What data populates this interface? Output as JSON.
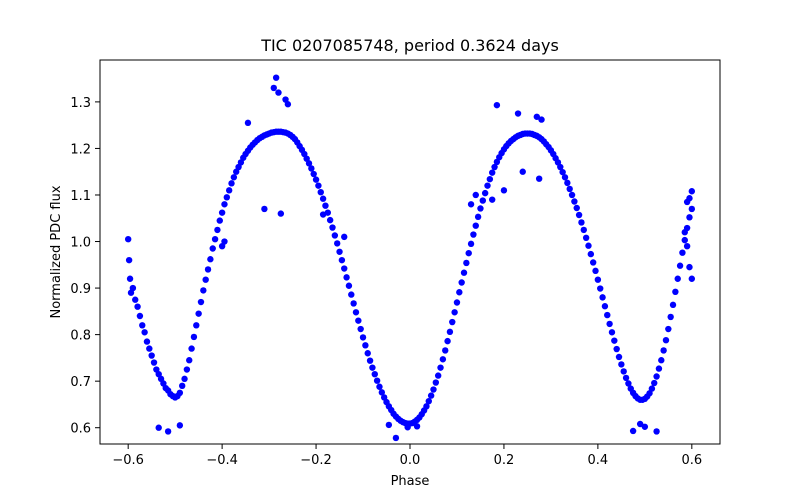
{
  "chart_data": {
    "type": "scatter",
    "title": "TIC 0207085748, period 0.3624 days",
    "xlabel": "Phase",
    "ylabel": "Normalized PDC flux",
    "xlim": [
      -0.66,
      0.66
    ],
    "ylim": [
      0.565,
      1.39
    ],
    "xticks": [
      -0.6,
      -0.4,
      -0.2,
      0.0,
      0.2,
      0.4,
      0.6
    ],
    "xtick_labels": [
      "−0.6",
      "−0.4",
      "−0.2",
      "0.0",
      "0.2",
      "0.4",
      "0.6"
    ],
    "yticks": [
      0.6,
      0.7,
      0.8,
      0.9,
      1.0,
      1.1,
      1.2,
      1.3
    ],
    "ytick_labels": [
      "0.6",
      "0.7",
      "0.8",
      "0.9",
      "1.0",
      "1.1",
      "1.2",
      "1.3"
    ],
    "grid": false,
    "legend": "none",
    "series": [
      {
        "color": "#0000ff",
        "marker": "circle",
        "points": [
          [
            -0.6,
            1.005
          ],
          [
            -0.598,
            0.96
          ],
          [
            -0.596,
            0.92
          ],
          [
            -0.594,
            0.89
          ],
          [
            -0.59,
            0.9
          ],
          [
            -0.585,
            0.875
          ],
          [
            -0.58,
            0.86
          ],
          [
            -0.575,
            0.84
          ],
          [
            -0.57,
            0.82
          ],
          [
            -0.565,
            0.805
          ],
          [
            -0.56,
            0.785
          ],
          [
            -0.555,
            0.77
          ],
          [
            -0.55,
            0.755
          ],
          [
            -0.545,
            0.74
          ],
          [
            -0.54,
            0.725
          ],
          [
            -0.535,
            0.715
          ],
          [
            -0.53,
            0.705
          ],
          [
            -0.525,
            0.695
          ],
          [
            -0.52,
            0.685
          ],
          [
            -0.515,
            0.68
          ],
          [
            -0.51,
            0.672
          ],
          [
            -0.505,
            0.668
          ],
          [
            -0.5,
            0.665
          ],
          [
            -0.495,
            0.668
          ],
          [
            -0.49,
            0.675
          ],
          [
            -0.485,
            0.69
          ],
          [
            -0.48,
            0.705
          ],
          [
            -0.475,
            0.725
          ],
          [
            -0.47,
            0.745
          ],
          [
            -0.465,
            0.77
          ],
          [
            -0.46,
            0.795
          ],
          [
            -0.455,
            0.82
          ],
          [
            -0.45,
            0.845
          ],
          [
            -0.445,
            0.87
          ],
          [
            -0.44,
            0.895
          ],
          [
            -0.435,
            0.918
          ],
          [
            -0.43,
            0.94
          ],
          [
            -0.425,
            0.962
          ],
          [
            -0.42,
            0.985
          ],
          [
            -0.415,
            1.005
          ],
          [
            -0.41,
            1.025
          ],
          [
            -0.405,
            1.045
          ],
          [
            -0.4,
            1.062
          ],
          [
            -0.395,
            1.08
          ],
          [
            -0.39,
            1.095
          ],
          [
            -0.385,
            1.11
          ],
          [
            -0.38,
            1.125
          ],
          [
            -0.375,
            1.138
          ],
          [
            -0.37,
            1.15
          ],
          [
            -0.365,
            1.16
          ],
          [
            -0.36,
            1.17
          ],
          [
            -0.355,
            1.18
          ],
          [
            -0.35,
            1.188
          ],
          [
            -0.345,
            1.195
          ],
          [
            -0.34,
            1.202
          ],
          [
            -0.335,
            1.208
          ],
          [
            -0.33,
            1.213
          ],
          [
            -0.325,
            1.218
          ],
          [
            -0.32,
            1.222
          ],
          [
            -0.315,
            1.225
          ],
          [
            -0.31,
            1.228
          ],
          [
            -0.305,
            1.23
          ],
          [
            -0.3,
            1.232
          ],
          [
            -0.295,
            1.234
          ],
          [
            -0.29,
            1.235
          ],
          [
            -0.285,
            1.236
          ],
          [
            -0.28,
            1.236
          ],
          [
            -0.275,
            1.236
          ],
          [
            -0.27,
            1.235
          ],
          [
            -0.265,
            1.234
          ],
          [
            -0.26,
            1.232
          ],
          [
            -0.255,
            1.229
          ],
          [
            -0.25,
            1.225
          ],
          [
            -0.245,
            1.22
          ],
          [
            -0.24,
            1.213
          ],
          [
            -0.235,
            1.205
          ],
          [
            -0.23,
            1.197
          ],
          [
            -0.225,
            1.188
          ],
          [
            -0.22,
            1.178
          ],
          [
            -0.215,
            1.168
          ],
          [
            -0.21,
            1.157
          ],
          [
            -0.205,
            1.145
          ],
          [
            -0.2,
            1.133
          ],
          [
            -0.195,
            1.12
          ],
          [
            -0.19,
            1.106
          ],
          [
            -0.185,
            1.092
          ],
          [
            -0.18,
            1.077
          ],
          [
            -0.175,
            1.062
          ],
          [
            -0.17,
            1.046
          ],
          [
            -0.165,
            1.03
          ],
          [
            -0.16,
            1.013
          ],
          [
            -0.155,
            0.996
          ],
          [
            -0.15,
            0.978
          ],
          [
            -0.145,
            0.96
          ],
          [
            -0.14,
            0.942
          ],
          [
            -0.135,
            0.923
          ],
          [
            -0.13,
            0.905
          ],
          [
            -0.125,
            0.886
          ],
          [
            -0.12,
            0.867
          ],
          [
            -0.115,
            0.848
          ],
          [
            -0.11,
            0.83
          ],
          [
            -0.105,
            0.812
          ],
          [
            -0.1,
            0.794
          ],
          [
            -0.095,
            0.777
          ],
          [
            -0.09,
            0.76
          ],
          [
            -0.085,
            0.744
          ],
          [
            -0.08,
            0.729
          ],
          [
            -0.075,
            0.715
          ],
          [
            -0.07,
            0.701
          ],
          [
            -0.065,
            0.688
          ],
          [
            -0.06,
            0.676
          ],
          [
            -0.055,
            0.665
          ],
          [
            -0.05,
            0.655
          ],
          [
            -0.045,
            0.646
          ],
          [
            -0.04,
            0.638
          ],
          [
            -0.035,
            0.63
          ],
          [
            -0.03,
            0.624
          ],
          [
            -0.025,
            0.619
          ],
          [
            -0.02,
            0.615
          ],
          [
            -0.015,
            0.612
          ],
          [
            -0.01,
            0.61
          ],
          [
            -0.005,
            0.609
          ],
          [
            0.0,
            0.609
          ],
          [
            0.005,
            0.61
          ],
          [
            0.01,
            0.613
          ],
          [
            0.015,
            0.617
          ],
          [
            0.02,
            0.622
          ],
          [
            0.025,
            0.629
          ],
          [
            0.03,
            0.637
          ],
          [
            0.035,
            0.646
          ],
          [
            0.04,
            0.657
          ],
          [
            0.045,
            0.669
          ],
          [
            0.05,
            0.682
          ],
          [
            0.055,
            0.697
          ],
          [
            0.06,
            0.712
          ],
          [
            0.065,
            0.729
          ],
          [
            0.07,
            0.747
          ],
          [
            0.075,
            0.766
          ],
          [
            0.08,
            0.786
          ],
          [
            0.085,
            0.806
          ],
          [
            0.09,
            0.827
          ],
          [
            0.095,
            0.848
          ],
          [
            0.1,
            0.869
          ],
          [
            0.105,
            0.891
          ],
          [
            0.11,
            0.912
          ],
          [
            0.115,
            0.933
          ],
          [
            0.12,
            0.954
          ],
          [
            0.125,
            0.975
          ],
          [
            0.13,
            0.995
          ],
          [
            0.135,
            1.015
          ],
          [
            0.14,
            1.034
          ],
          [
            0.145,
            1.053
          ],
          [
            0.15,
            1.071
          ],
          [
            0.155,
            1.088
          ],
          [
            0.16,
            1.104
          ],
          [
            0.165,
            1.12
          ],
          [
            0.17,
            1.134
          ],
          [
            0.175,
            1.148
          ],
          [
            0.18,
            1.16
          ],
          [
            0.185,
            1.171
          ],
          [
            0.19,
            1.181
          ],
          [
            0.195,
            1.19
          ],
          [
            0.2,
            1.198
          ],
          [
            0.205,
            1.205
          ],
          [
            0.21,
            1.211
          ],
          [
            0.215,
            1.216
          ],
          [
            0.22,
            1.22
          ],
          [
            0.225,
            1.224
          ],
          [
            0.23,
            1.227
          ],
          [
            0.235,
            1.229
          ],
          [
            0.24,
            1.231
          ],
          [
            0.245,
            1.232
          ],
          [
            0.25,
            1.232
          ],
          [
            0.255,
            1.232
          ],
          [
            0.26,
            1.231
          ],
          [
            0.265,
            1.229
          ],
          [
            0.27,
            1.227
          ],
          [
            0.275,
            1.224
          ],
          [
            0.28,
            1.22
          ],
          [
            0.285,
            1.215
          ],
          [
            0.29,
            1.209
          ],
          [
            0.295,
            1.203
          ],
          [
            0.3,
            1.196
          ],
          [
            0.305,
            1.188
          ],
          [
            0.31,
            1.179
          ],
          [
            0.315,
            1.17
          ],
          [
            0.32,
            1.16
          ],
          [
            0.325,
            1.149
          ],
          [
            0.33,
            1.138
          ],
          [
            0.335,
            1.126
          ],
          [
            0.34,
            1.113
          ],
          [
            0.345,
            1.1
          ],
          [
            0.35,
            1.086
          ],
          [
            0.355,
            1.072
          ],
          [
            0.36,
            1.057
          ],
          [
            0.365,
            1.041
          ],
          [
            0.37,
            1.025
          ],
          [
            0.375,
            1.008
          ],
          [
            0.38,
            0.991
          ],
          [
            0.385,
            0.973
          ],
          [
            0.39,
            0.955
          ],
          [
            0.395,
            0.937
          ],
          [
            0.4,
            0.918
          ],
          [
            0.405,
            0.899
          ],
          [
            0.41,
            0.88
          ],
          [
            0.415,
            0.861
          ],
          [
            0.42,
            0.842
          ],
          [
            0.425,
            0.823
          ],
          [
            0.43,
            0.805
          ],
          [
            0.435,
            0.787
          ],
          [
            0.44,
            0.769
          ],
          [
            0.445,
            0.752
          ],
          [
            0.45,
            0.736
          ],
          [
            0.455,
            0.721
          ],
          [
            0.46,
            0.707
          ],
          [
            0.465,
            0.695
          ],
          [
            0.47,
            0.684
          ],
          [
            0.475,
            0.675
          ],
          [
            0.48,
            0.668
          ],
          [
            0.485,
            0.663
          ],
          [
            0.49,
            0.66
          ],
          [
            0.495,
            0.66
          ],
          [
            0.5,
            0.662
          ],
          [
            0.505,
            0.667
          ],
          [
            0.51,
            0.674
          ],
          [
            0.515,
            0.684
          ],
          [
            0.52,
            0.696
          ],
          [
            0.525,
            0.71
          ],
          [
            0.53,
            0.727
          ],
          [
            0.535,
            0.745
          ],
          [
            0.54,
            0.766
          ],
          [
            0.545,
            0.788
          ],
          [
            0.55,
            0.812
          ],
          [
            0.555,
            0.838
          ],
          [
            0.56,
            0.864
          ],
          [
            0.565,
            0.892
          ],
          [
            0.57,
            0.92
          ],
          [
            0.575,
            0.948
          ],
          [
            0.58,
            0.976
          ],
          [
            0.585,
            1.003
          ],
          [
            0.59,
            1.029
          ],
          [
            0.595,
            1.052
          ],
          [
            0.6,
            1.07
          ],
          [
            -0.285,
            1.352
          ],
          [
            -0.29,
            1.33
          ],
          [
            -0.265,
            1.305
          ],
          [
            -0.26,
            1.295
          ],
          [
            -0.28,
            1.32
          ],
          [
            0.185,
            1.293
          ],
          [
            0.23,
            1.275
          ],
          [
            0.27,
            1.268
          ],
          [
            0.28,
            1.262
          ],
          [
            -0.345,
            1.255
          ],
          [
            0.6,
            1.108
          ],
          [
            0.595,
            1.093
          ],
          [
            0.59,
            1.085
          ],
          [
            -0.03,
            0.578
          ],
          [
            0.525,
            0.592
          ],
          [
            0.475,
            0.593
          ],
          [
            -0.515,
            0.592
          ],
          [
            -0.535,
            0.6
          ],
          [
            -0.49,
            0.605
          ],
          [
            0.49,
            0.608
          ],
          [
            -0.045,
            0.606
          ],
          [
            0.015,
            0.603
          ],
          [
            -0.005,
            0.601
          ],
          [
            0.5,
            0.602
          ],
          [
            -0.275,
            1.06
          ],
          [
            -0.31,
            1.07
          ],
          [
            -0.185,
            1.058
          ],
          [
            0.24,
            1.15
          ],
          [
            0.275,
            1.135
          ],
          [
            0.2,
            1.11
          ],
          [
            -0.395,
            1.0
          ],
          [
            -0.4,
            0.99
          ],
          [
            0.6,
            0.92
          ],
          [
            0.595,
            0.945
          ],
          [
            0.59,
            0.99
          ],
          [
            0.585,
            1.02
          ],
          [
            0.13,
            1.08
          ],
          [
            0.14,
            1.1
          ],
          [
            0.175,
            1.09
          ],
          [
            -0.14,
            1.01
          ]
        ]
      }
    ]
  }
}
